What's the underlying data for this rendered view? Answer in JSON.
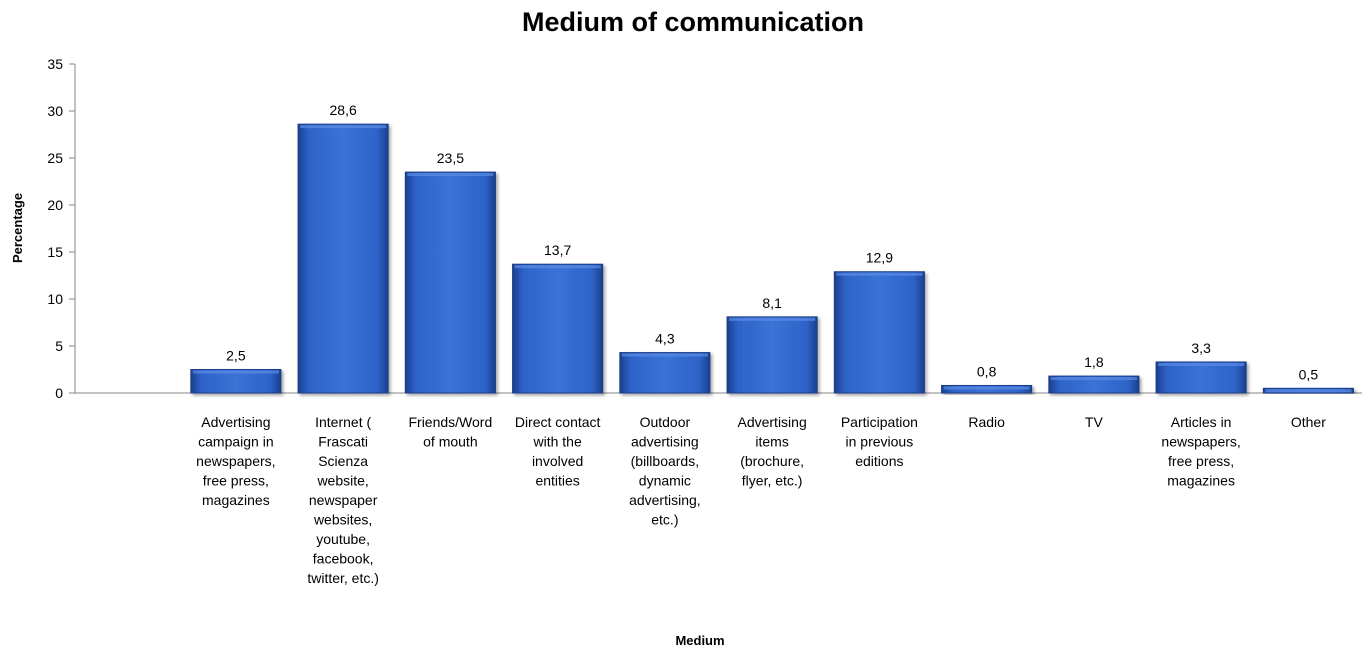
{
  "chart_data": {
    "type": "bar",
    "title": "Medium of communication",
    "xlabel": "Medium",
    "ylabel": "Percentage",
    "ylim": [
      0,
      35
    ],
    "yticks": [
      "0",
      "5",
      "10",
      "15",
      "20",
      "25",
      "30",
      "35"
    ],
    "grid": false,
    "bar_color": "#2E63C8",
    "categories": [
      [
        "Advertising",
        "campaign in",
        "newspapers,",
        "free press,",
        "magazines"
      ],
      [
        "Internet (",
        "Frascati",
        "Scienza",
        "website,",
        "newspaper",
        "websites,",
        "youtube,",
        "facebook,",
        "twitter, etc.)"
      ],
      [
        "Friends/Word",
        "of mouth"
      ],
      [
        "Direct contact",
        "with the",
        "involved",
        "entities"
      ],
      [
        "Outdoor",
        "advertising",
        "(billboards,",
        "dynamic",
        "advertising,",
        "etc.)"
      ],
      [
        "Advertising",
        "items",
        "(brochure,",
        "flyer, etc.)"
      ],
      [
        "Participation",
        "in previous",
        "editions"
      ],
      [
        "Radio"
      ],
      [
        "TV"
      ],
      [
        "Articles in",
        "newspapers,",
        "free press,",
        "magazines"
      ],
      [
        "Other"
      ]
    ],
    "values": [
      2.5,
      28.6,
      23.5,
      13.7,
      4.3,
      8.1,
      12.9,
      0.8,
      1.8,
      3.3,
      0.5
    ],
    "value_labels": [
      "2,5",
      "28,6",
      "23,5",
      "13,7",
      "4,3",
      "8,1",
      "12,9",
      "0,8",
      "1,8",
      "3,3",
      "0,5"
    ]
  }
}
